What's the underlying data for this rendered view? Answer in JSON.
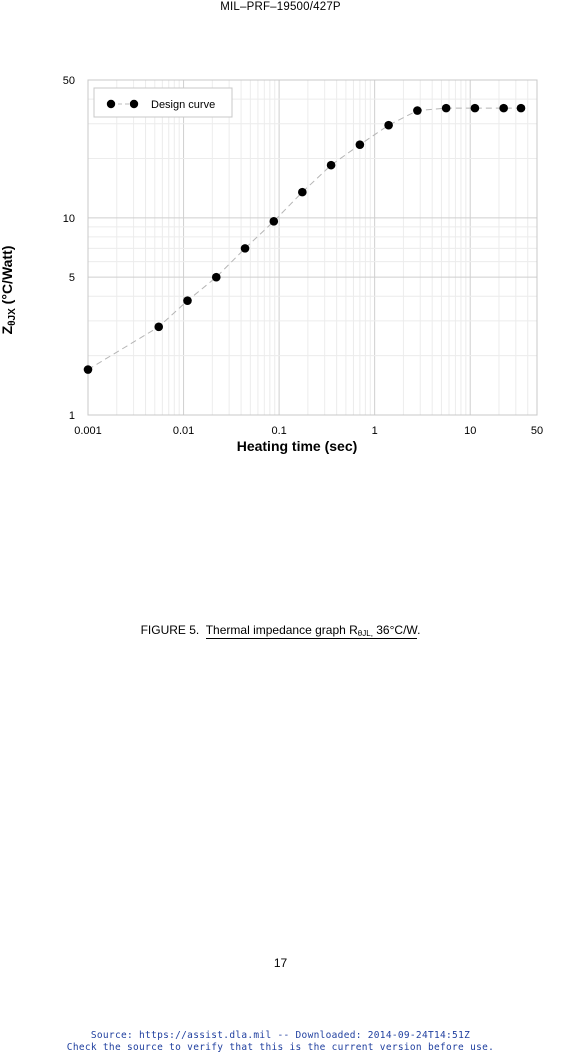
{
  "header": {
    "doc_id": "MIL–PRF–19500/427P"
  },
  "chart_data": {
    "type": "scatter",
    "x_scale": "log",
    "y_scale": "log",
    "xlim": [
      0.001,
      50
    ],
    "ylim": [
      1,
      50
    ],
    "x_ticks": [
      {
        "value": 0.001,
        "label": "0.001"
      },
      {
        "value": 0.01,
        "label": "0.01"
      },
      {
        "value": 0.1,
        "label": "0.1"
      },
      {
        "value": 1,
        "label": "1"
      },
      {
        "value": 10,
        "label": "10"
      },
      {
        "value": 50,
        "label": "50"
      }
    ],
    "y_ticks": [
      {
        "value": 1,
        "label": "1"
      },
      {
        "value": 5,
        "label": "5"
      },
      {
        "value": 10,
        "label": "10"
      },
      {
        "value": 50,
        "label": "50"
      }
    ],
    "xlabel": "Heating time (sec)",
    "ylabel_main": "Z",
    "ylabel_sub": "θJX",
    "ylabel_rest": " (°C/Watt)",
    "grid": true,
    "legend_position": "top-left",
    "series": [
      {
        "name": "Design curve",
        "color": "#000000",
        "marker": "circle",
        "line": "dashed light gray",
        "points": [
          {
            "x": 0.001,
            "y": 1.7
          },
          {
            "x": 0.0055,
            "y": 2.8
          },
          {
            "x": 0.011,
            "y": 3.8
          },
          {
            "x": 0.022,
            "y": 5.0
          },
          {
            "x": 0.044,
            "y": 7.0
          },
          {
            "x": 0.088,
            "y": 9.6
          },
          {
            "x": 0.175,
            "y": 13.5
          },
          {
            "x": 0.35,
            "y": 18.5
          },
          {
            "x": 0.7,
            "y": 23.5
          },
          {
            "x": 1.4,
            "y": 29.5
          },
          {
            "x": 2.8,
            "y": 35.0
          },
          {
            "x": 5.6,
            "y": 36.0
          },
          {
            "x": 11.2,
            "y": 36.0
          },
          {
            "x": 22.4,
            "y": 36.0
          },
          {
            "x": 34,
            "y": 36.0
          }
        ]
      }
    ]
  },
  "caption": {
    "prefix": "FIGURE 5.",
    "title_main": "Thermal impedance graph R",
    "title_sub": "θJL,",
    "title_rest": " 36°C/W",
    "suffix": "."
  },
  "page_number": "17",
  "footer": {
    "line1": "Source: https://assist.dla.mil -- Downloaded: 2014-09-24T14:51Z",
    "line2": "Check the source to verify that this is the current version before use."
  }
}
